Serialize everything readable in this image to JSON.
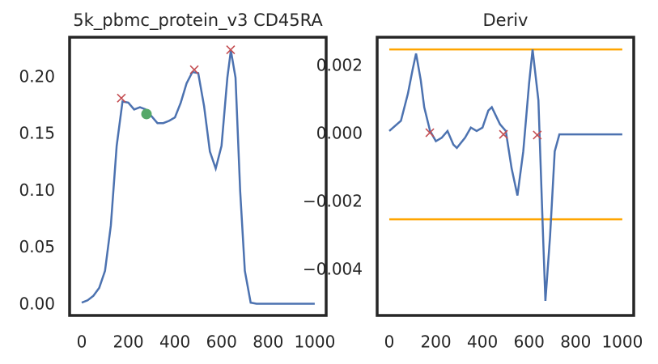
{
  "chart_data": [
    {
      "type": "line",
      "title": "5k_pbmc_protein_v3 CD45RA",
      "xlim": [
        -52,
        1049
      ],
      "xticks": [
        0,
        200,
        400,
        600,
        800,
        1000
      ],
      "ylim": [
        -0.0093,
        0.2356
      ],
      "yticks": [
        {
          "value": 0,
          "label": "0.00"
        },
        {
          "value": 0.05,
          "label": "0.05"
        },
        {
          "value": 0.1,
          "label": "0.10"
        },
        {
          "value": 0.15,
          "label": "0.15"
        },
        {
          "value": 0.2,
          "label": "0.20"
        }
      ],
      "series": [
        {
          "style": "line",
          "color": "#4c72b0",
          "x": [
            0,
            25,
            50,
            75,
            100,
            125,
            150,
            175,
            200,
            225,
            250,
            275,
            300,
            325,
            350,
            375,
            400,
            425,
            450,
            475,
            500,
            525,
            550,
            575,
            600,
            625,
            640,
            660,
            680,
            700,
            725,
            750,
            800,
            900,
            1000
          ],
          "values": [
            0.002,
            0.004,
            0.008,
            0.015,
            0.03,
            0.07,
            0.14,
            0.179,
            0.178,
            0.172,
            0.174,
            0.172,
            0.166,
            0.16,
            0.16,
            0.162,
            0.165,
            0.178,
            0.195,
            0.205,
            0.204,
            0.175,
            0.135,
            0.12,
            0.14,
            0.2,
            0.224,
            0.2,
            0.1,
            0.03,
            0.002,
            0.001,
            0.001,
            0.001,
            0.001
          ]
        },
        {
          "style": "cross",
          "color": "#c44e52",
          "x": [
            170,
            483,
            639
          ],
          "values": [
            0.182,
            0.207,
            0.2245
          ]
        },
        {
          "style": "dot",
          "color": "#55a868",
          "x": [
            278
          ],
          "values": [
            0.168
          ]
        }
      ]
    },
    {
      "type": "line",
      "title": "Deriv",
      "xlim": [
        -52,
        1049
      ],
      "xticks": [
        0,
        200,
        400,
        600,
        800,
        1000
      ],
      "ylim": [
        -0.00533,
        0.00286
      ],
      "yticks": [
        {
          "value": -0.004,
          "label": "−0.004"
        },
        {
          "value": -0.002,
          "label": "−0.002"
        },
        {
          "value": 0,
          "label": "0.000"
        },
        {
          "value": 0.002,
          "label": "0.002"
        }
      ],
      "series": [
        {
          "style": "line",
          "color": "#ffa500",
          "x": [
            0,
            1000
          ],
          "values": [
            0.0025,
            0.0025
          ]
        },
        {
          "style": "line",
          "color": "#ffa500",
          "x": [
            0,
            1000
          ],
          "values": [
            -0.0025,
            -0.0025
          ]
        },
        {
          "style": "line",
          "color": "#4c72b0",
          "x": [
            0,
            50,
            80,
            100,
            115,
            135,
            150,
            175,
            200,
            225,
            250,
            275,
            290,
            325,
            350,
            375,
            400,
            425,
            440,
            475,
            500,
            525,
            550,
            575,
            600,
            615,
            640,
            660,
            670,
            690,
            710,
            730,
            750,
            1000
          ],
          "values": [
            0.0001,
            0.0004,
            0.0012,
            0.0019,
            0.00238,
            0.0016,
            0.0008,
            0.0001,
            -0.0002,
            -0.0001,
            0.0001,
            -0.0003,
            -0.0004,
            -0.0001,
            0.0002,
            0.0001,
            0.0002,
            0.0007,
            0.0008,
            0.0003,
            0.0001,
            -0.001,
            -0.0018,
            -0.0005,
            0.0015,
            0.0025,
            0.001,
            -0.003,
            -0.0049,
            -0.003,
            -0.0005,
            0,
            0,
            0
          ]
        },
        {
          "style": "cross",
          "color": "#c44e52",
          "x": [
            174,
            490,
            635
          ],
          "values": [
            5e-05,
            0.0,
            -2e-05
          ]
        }
      ]
    }
  ]
}
